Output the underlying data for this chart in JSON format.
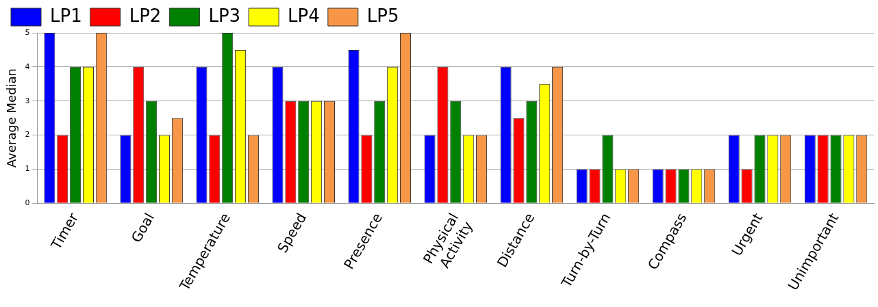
{
  "chart_data": {
    "type": "bar",
    "ylabel": "Average Median",
    "categories": [
      "Timer",
      "Goal",
      "Temperature",
      "Speed",
      "Presence",
      "Physical Activity",
      "Distance",
      "Turn-by-Turn",
      "Compass",
      "Urgent",
      "Unimportant"
    ],
    "series": [
      {
        "name": "LP1",
        "color": "#0000ff",
        "values": [
          5,
          2,
          4,
          4,
          4.5,
          2,
          4,
          1,
          1,
          2,
          2
        ]
      },
      {
        "name": "LP2",
        "color": "#ff0000",
        "values": [
          2,
          4,
          2,
          3,
          2,
          4,
          2.5,
          1,
          1,
          1,
          2
        ]
      },
      {
        "name": "LP3",
        "color": "#008000",
        "values": [
          4,
          3,
          5,
          3,
          3,
          3,
          3,
          2,
          1,
          2,
          2
        ]
      },
      {
        "name": "LP4",
        "color": "#ffff00",
        "values": [
          4,
          2,
          4.5,
          3,
          4,
          2,
          3.5,
          1,
          1,
          2,
          2
        ]
      },
      {
        "name": "LP5",
        "color": "#f79646",
        "values": [
          5,
          2.5,
          2,
          3,
          5,
          2,
          4,
          1,
          1,
          2,
          2
        ]
      }
    ],
    "ylim": [
      0,
      5
    ],
    "yticks": [
      0,
      1,
      2,
      3,
      4,
      5
    ],
    "grid": "y",
    "legend": "top"
  }
}
